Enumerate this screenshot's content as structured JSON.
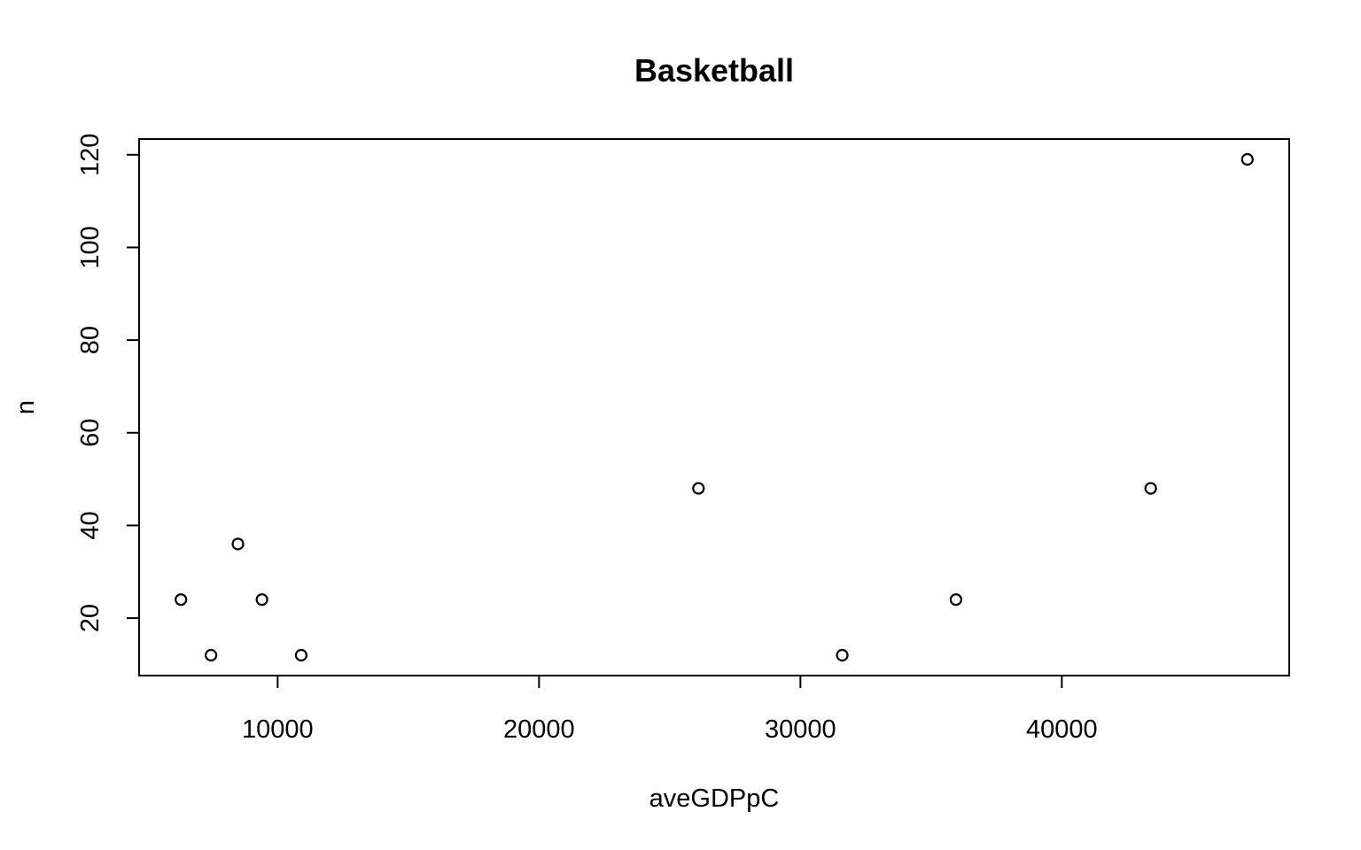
{
  "chart_data": {
    "type": "scatter",
    "title": "Basketball",
    "xlabel": "aveGDPpC",
    "ylabel": "n",
    "xlim": [
      4700,
      48700
    ],
    "ylim": [
      7.6,
      123.4
    ],
    "x_ticks": [
      10000,
      20000,
      30000,
      40000
    ],
    "y_ticks": [
      20,
      40,
      60,
      80,
      100,
      120
    ],
    "grid": false,
    "legend": "none",
    "points": [
      {
        "x": 6300,
        "y": 24
      },
      {
        "x": 7450,
        "y": 12
      },
      {
        "x": 8480,
        "y": 36
      },
      {
        "x": 9400,
        "y": 24
      },
      {
        "x": 10900,
        "y": 12
      },
      {
        "x": 26100,
        "y": 48
      },
      {
        "x": 31600,
        "y": 12
      },
      {
        "x": 35950,
        "y": 24
      },
      {
        "x": 43400,
        "y": 48
      },
      {
        "x": 47100,
        "y": 119
      }
    ]
  }
}
